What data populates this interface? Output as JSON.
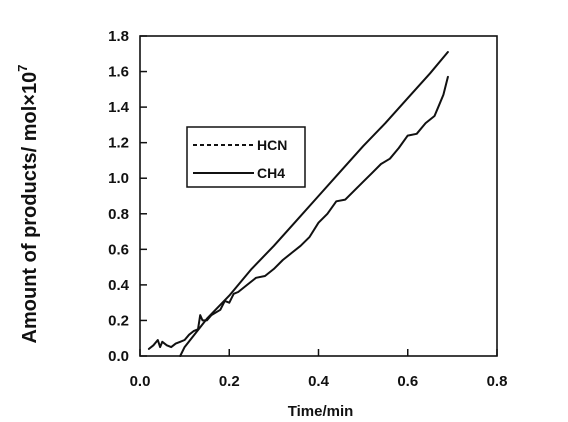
{
  "chart_data": {
    "type": "line",
    "xlabel": "Time/min",
    "ylabel": "Amount of products/ mol×10",
    "ylabel_exponent": "7",
    "xlim": [
      0.0,
      0.8
    ],
    "ylim": [
      0.0,
      1.8
    ],
    "x_ticks": [
      "0.0",
      "0.2",
      "0.4",
      "0.6",
      "0.8"
    ],
    "y_ticks": [
      "0.0",
      "0.2",
      "0.4",
      "0.6",
      "0.8",
      "1.0",
      "1.2",
      "1.4",
      "1.6",
      "1.8"
    ],
    "x_tick_values": [
      0.0,
      0.2,
      0.4,
      0.6,
      0.8
    ],
    "y_tick_values": [
      0.0,
      0.2,
      0.4,
      0.6,
      0.8,
      1.0,
      1.2,
      1.4,
      1.6,
      1.8
    ],
    "grid": false,
    "legend_position": "upper-left",
    "series": [
      {
        "name": "HCN",
        "style": "solid-noisy",
        "x": [
          0.02,
          0.03,
          0.04,
          0.045,
          0.05,
          0.06,
          0.07,
          0.08,
          0.09,
          0.1,
          0.11,
          0.12,
          0.13,
          0.135,
          0.14,
          0.15,
          0.16,
          0.18,
          0.19,
          0.2,
          0.21,
          0.22,
          0.24,
          0.26,
          0.28,
          0.3,
          0.32,
          0.34,
          0.36,
          0.38,
          0.4,
          0.42,
          0.44,
          0.46,
          0.48,
          0.5,
          0.52,
          0.54,
          0.56,
          0.58,
          0.6,
          0.62,
          0.64,
          0.66,
          0.67,
          0.68,
          0.69
        ],
        "y": [
          0.04,
          0.06,
          0.09,
          0.05,
          0.08,
          0.06,
          0.05,
          0.07,
          0.08,
          0.09,
          0.12,
          0.14,
          0.15,
          0.23,
          0.2,
          0.2,
          0.23,
          0.26,
          0.31,
          0.3,
          0.35,
          0.36,
          0.4,
          0.44,
          0.45,
          0.49,
          0.54,
          0.58,
          0.62,
          0.67,
          0.75,
          0.8,
          0.87,
          0.88,
          0.93,
          0.98,
          1.03,
          1.08,
          1.11,
          1.17,
          1.24,
          1.25,
          1.31,
          1.35,
          1.41,
          1.47,
          1.57
        ]
      },
      {
        "name": "CH4",
        "style": "solid-smooth",
        "x": [
          0.09,
          0.1,
          0.15,
          0.2,
          0.25,
          0.3,
          0.35,
          0.4,
          0.45,
          0.5,
          0.55,
          0.6,
          0.65,
          0.69
        ],
        "y": [
          0.0,
          0.05,
          0.21,
          0.34,
          0.49,
          0.62,
          0.76,
          0.9,
          1.04,
          1.18,
          1.31,
          1.45,
          1.59,
          1.71
        ]
      }
    ],
    "legend": {
      "entries": [
        {
          "label": "HCN",
          "line": "dashed"
        },
        {
          "label": "CH4",
          "line": "solid"
        }
      ]
    }
  }
}
